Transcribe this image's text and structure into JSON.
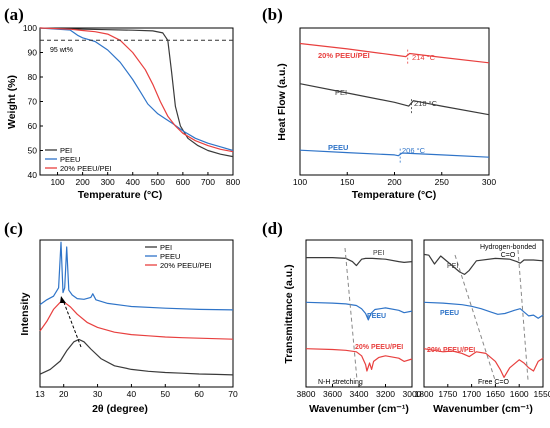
{
  "chart_data": [
    {
      "panel": "(a)",
      "type": "line",
      "xlabel": "Temperature (°C)",
      "ylabel": "Weight (%)",
      "xlim": [
        30,
        800
      ],
      "ylim": [
        40,
        100
      ],
      "xticks": [
        "100",
        "200",
        "300",
        "400",
        "500",
        "600",
        "700",
        "800"
      ],
      "yticks": [
        "40",
        "50",
        "60",
        "70",
        "80",
        "90",
        "100"
      ],
      "legend_position": "bottom-left",
      "annotations": [
        "95 wt%"
      ],
      "reference_line": 95,
      "series": [
        {
          "name": "PEI",
          "color": "#3a3a3a",
          "x": [
            30,
            100,
            200,
            300,
            400,
            480,
            520,
            540,
            555,
            570,
            590,
            620,
            660,
            700,
            750,
            800
          ],
          "y": [
            100,
            99.8,
            99.5,
            99.3,
            99.1,
            98.8,
            98,
            95,
            82,
            68,
            60,
            55,
            52,
            50,
            48.5,
            47.5
          ]
        },
        {
          "name": "PEEU",
          "color": "#2f74c8",
          "x": [
            30,
            150,
            180,
            200,
            250,
            300,
            350,
            400,
            430,
            460,
            500,
            530,
            560,
            600,
            650,
            700,
            750,
            800
          ],
          "y": [
            100,
            99.2,
            97,
            96,
            94.5,
            91,
            86,
            79,
            74,
            69,
            65,
            63,
            61,
            58,
            55,
            53,
            51.5,
            50
          ]
        },
        {
          "name": "20% PEEU/PEI",
          "color": "#e8403f",
          "x": [
            30,
            150,
            200,
            250,
            300,
            350,
            400,
            450,
            480,
            510,
            540,
            570,
            600,
            650,
            700,
            750,
            800
          ],
          "y": [
            100,
            99.5,
            99,
            98.5,
            97.5,
            95,
            90,
            83,
            77,
            70,
            64,
            60,
            57,
            54,
            52,
            50.5,
            49.5
          ]
        }
      ]
    },
    {
      "panel": "(b)",
      "type": "line",
      "xlabel": "Temperature (°C)",
      "ylabel": "Heat Flow (a.u.)",
      "xlim": [
        100,
        300
      ],
      "xticks": [
        "100",
        "150",
        "200",
        "250",
        "300"
      ],
      "series": [
        {
          "name": "20% PEEU/PEI",
          "color": "#e8403f",
          "label": "214 °C",
          "tg": 214,
          "x": [
            100,
            150,
            200,
            212,
            216,
            250,
            300
          ],
          "y": [
            8.5,
            8.15,
            7.75,
            7.65,
            7.85,
            7.6,
            7.25
          ]
        },
        {
          "name": "PEI",
          "color": "#3a3a3a",
          "label": "218 °C",
          "tg": 218,
          "x": [
            100,
            150,
            200,
            215,
            220,
            250,
            300
          ],
          "y": [
            5.9,
            5.3,
            4.7,
            4.45,
            4.8,
            4.45,
            3.9
          ]
        },
        {
          "name": "PEEU",
          "color": "#2f74c8",
          "label": "206 °C",
          "tg": 206,
          "x": [
            100,
            150,
            200,
            204,
            208,
            250,
            300
          ],
          "y": [
            1.6,
            1.45,
            1.3,
            1.25,
            1.42,
            1.3,
            1.15
          ]
        }
      ]
    },
    {
      "panel": "(c)",
      "type": "line",
      "xlabel": "2θ (degree)",
      "ylabel": "Intensity",
      "xlim": [
        13,
        70
      ],
      "xticks": [
        "13",
        "20",
        "30",
        "40",
        "50",
        "60",
        "70"
      ],
      "legend_position": "top-right",
      "series": [
        {
          "name": "PEI",
          "color": "#3a3a3a",
          "x": [
            13,
            16,
            19,
            21,
            23,
            24.5,
            26,
            28,
            31,
            35,
            40,
            45,
            50,
            55,
            60,
            65,
            70
          ],
          "y": [
            0.2,
            0.4,
            0.75,
            1.2,
            1.55,
            1.65,
            1.55,
            1.25,
            0.85,
            0.55,
            0.4,
            0.32,
            0.27,
            0.24,
            0.21,
            0.19,
            0.17
          ]
        },
        {
          "name": "PEEU",
          "color": "#2f74c8",
          "x": [
            13,
            15,
            17,
            18.5,
            19.2,
            19.8,
            20.3,
            20.9,
            21.5,
            22.5,
            24,
            26,
            28,
            28.6,
            29.5,
            33,
            40,
            50,
            60,
            70
          ],
          "y": [
            0.5,
            0.7,
            0.85,
            1.2,
            3.1,
            1.0,
            1.2,
            2.9,
            1.1,
            0.9,
            0.75,
            0.72,
            0.8,
            0.95,
            0.7,
            0.55,
            0.42,
            0.35,
            0.3,
            0.28
          ]
        },
        {
          "name": "20% PEEU/PEI",
          "color": "#e8403f",
          "x": [
            13,
            15,
            17,
            19,
            20,
            22,
            24,
            27,
            30,
            35,
            40,
            45,
            50,
            55,
            60,
            65,
            70
          ],
          "y": [
            0.6,
            1.0,
            1.5,
            1.8,
            1.82,
            1.6,
            1.3,
            0.95,
            0.75,
            0.55,
            0.45,
            0.4,
            0.35,
            0.32,
            0.3,
            0.28,
            0.26
          ]
        }
      ]
    },
    {
      "panel": "(d)",
      "type": "line",
      "xlabel": "Wavenumber (cm⁻¹)",
      "ylabel": "Transmittance (a.u.)",
      "xlim": [
        3800,
        3000
      ],
      "xticks": [
        "3800",
        "3600",
        "3400",
        "3200",
        "3000"
      ],
      "annotations": [
        "N-H stretching"
      ],
      "series": [
        {
          "name": "PEI",
          "color": "#3a3a3a",
          "x": [
            3800,
            3600,
            3500,
            3450,
            3420,
            3400,
            3380,
            3350,
            3300,
            3200,
            3100,
            3060,
            3000
          ],
          "y": [
            8.1,
            8.1,
            8.05,
            7.85,
            7.6,
            7.8,
            8.0,
            8.05,
            8.05,
            8.0,
            7.85,
            7.8,
            7.85
          ]
        },
        {
          "name": "PEEU",
          "color": "#2f74c8",
          "x": [
            3800,
            3600,
            3500,
            3420,
            3380,
            3350,
            3330,
            3310,
            3280,
            3200,
            3100,
            3060,
            3000
          ],
          "y": [
            5.3,
            5.25,
            5.2,
            5.1,
            4.9,
            4.6,
            4.2,
            4.6,
            4.85,
            4.95,
            4.8,
            4.65,
            4.75
          ]
        },
        {
          "name": "20% PEEU/PEI",
          "color": "#e8403f",
          "x": [
            3800,
            3600,
            3500,
            3420,
            3380,
            3350,
            3340,
            3320,
            3305,
            3290,
            3250,
            3200,
            3100,
            3060,
            3000
          ],
          "y": [
            2.4,
            2.35,
            2.3,
            2.2,
            1.95,
            1.4,
            1.0,
            1.5,
            1.1,
            1.6,
            1.85,
            1.95,
            1.8,
            1.6,
            1.75
          ]
        }
      ]
    },
    {
      "panel": "(d)",
      "type": "line",
      "xlabel": "Wavenumber (cm⁻¹)",
      "xlim": [
        1800,
        1550
      ],
      "xticks": [
        "1800",
        "1750",
        "1700",
        "1650",
        "1600",
        "1550"
      ],
      "annotations": [
        "Hydrogen-bonded C=O",
        "Free C=O"
      ],
      "series": [
        {
          "name": "PEI",
          "color": "#3a3a3a",
          "x": [
            1800,
            1790,
            1778,
            1765,
            1745,
            1725,
            1715,
            1705,
            1690,
            1650,
            1620,
            1605,
            1598,
            1590,
            1570,
            1550
          ],
          "y": [
            8.3,
            8.25,
            7.7,
            8.2,
            7.7,
            7.2,
            7.05,
            7.3,
            7.9,
            8.05,
            8.0,
            7.85,
            7.75,
            7.95,
            7.95,
            7.9
          ]
        },
        {
          "name": "PEEU",
          "color": "#2f74c8",
          "x": [
            1800,
            1760,
            1720,
            1700,
            1680,
            1660,
            1645,
            1630,
            1610,
            1598,
            1590,
            1580,
            1570,
            1560,
            1550
          ],
          "y": [
            5.3,
            5.25,
            5.15,
            5.05,
            4.9,
            4.7,
            4.55,
            4.6,
            4.8,
            4.9,
            4.7,
            4.45,
            4.5,
            4.3,
            4.5
          ]
        },
        {
          "name": "20% PEEU/PEI",
          "color": "#e8403f",
          "x": [
            1800,
            1780,
            1760,
            1740,
            1720,
            1705,
            1690,
            1670,
            1650,
            1640,
            1632,
            1620,
            1600,
            1590,
            1580,
            1570,
            1560,
            1550
          ],
          "y": [
            2.4,
            2.3,
            2.2,
            2.25,
            2.1,
            1.9,
            2.2,
            2.1,
            1.6,
            1.1,
            0.6,
            1.2,
            1.7,
            1.5,
            1.2,
            1.0,
            1.6,
            1.8
          ]
        }
      ]
    }
  ],
  "labels": {
    "a": {
      "panel": "(a)",
      "ylabel": "Weight (%)",
      "xlabel": "Temperature (°C)",
      "ref": "95 wt%",
      "legend": [
        "PEI",
        "PEEU",
        "20% PEEU/PEI"
      ]
    },
    "b": {
      "panel": "(b)",
      "ylabel": "Heat Flow (a.u.)",
      "xlabel": "Temperature (°C)",
      "s1": "20% PEEU/PEI",
      "s1t": "214 °C",
      "s2": "PEI",
      "s2t": "218 °C",
      "s3": "PEEU",
      "s3t": "206 °C"
    },
    "c": {
      "panel": "(c)",
      "ylabel": "Intensity",
      "xlabel": "2θ (degree)",
      "legend": [
        "PEI",
        "PEEU",
        "20% PEEU/PEI"
      ]
    },
    "d": {
      "panel": "(d)",
      "ylabel": "Transmittance (a.u.)",
      "xlabel": "Wavenumber (cm⁻¹)",
      "pei": "PEI",
      "peeu": "PEEU",
      "blend": "20% PEEU/PEI",
      "nh": "N-H stretching",
      "hb1": "Hydrogen-bonded",
      "hb2": "C=O",
      "free": "Free C=O"
    }
  },
  "colors": {
    "PEI": "#3a3a3a",
    "PEEU": "#2f74c8",
    "blend": "#e8403f"
  }
}
